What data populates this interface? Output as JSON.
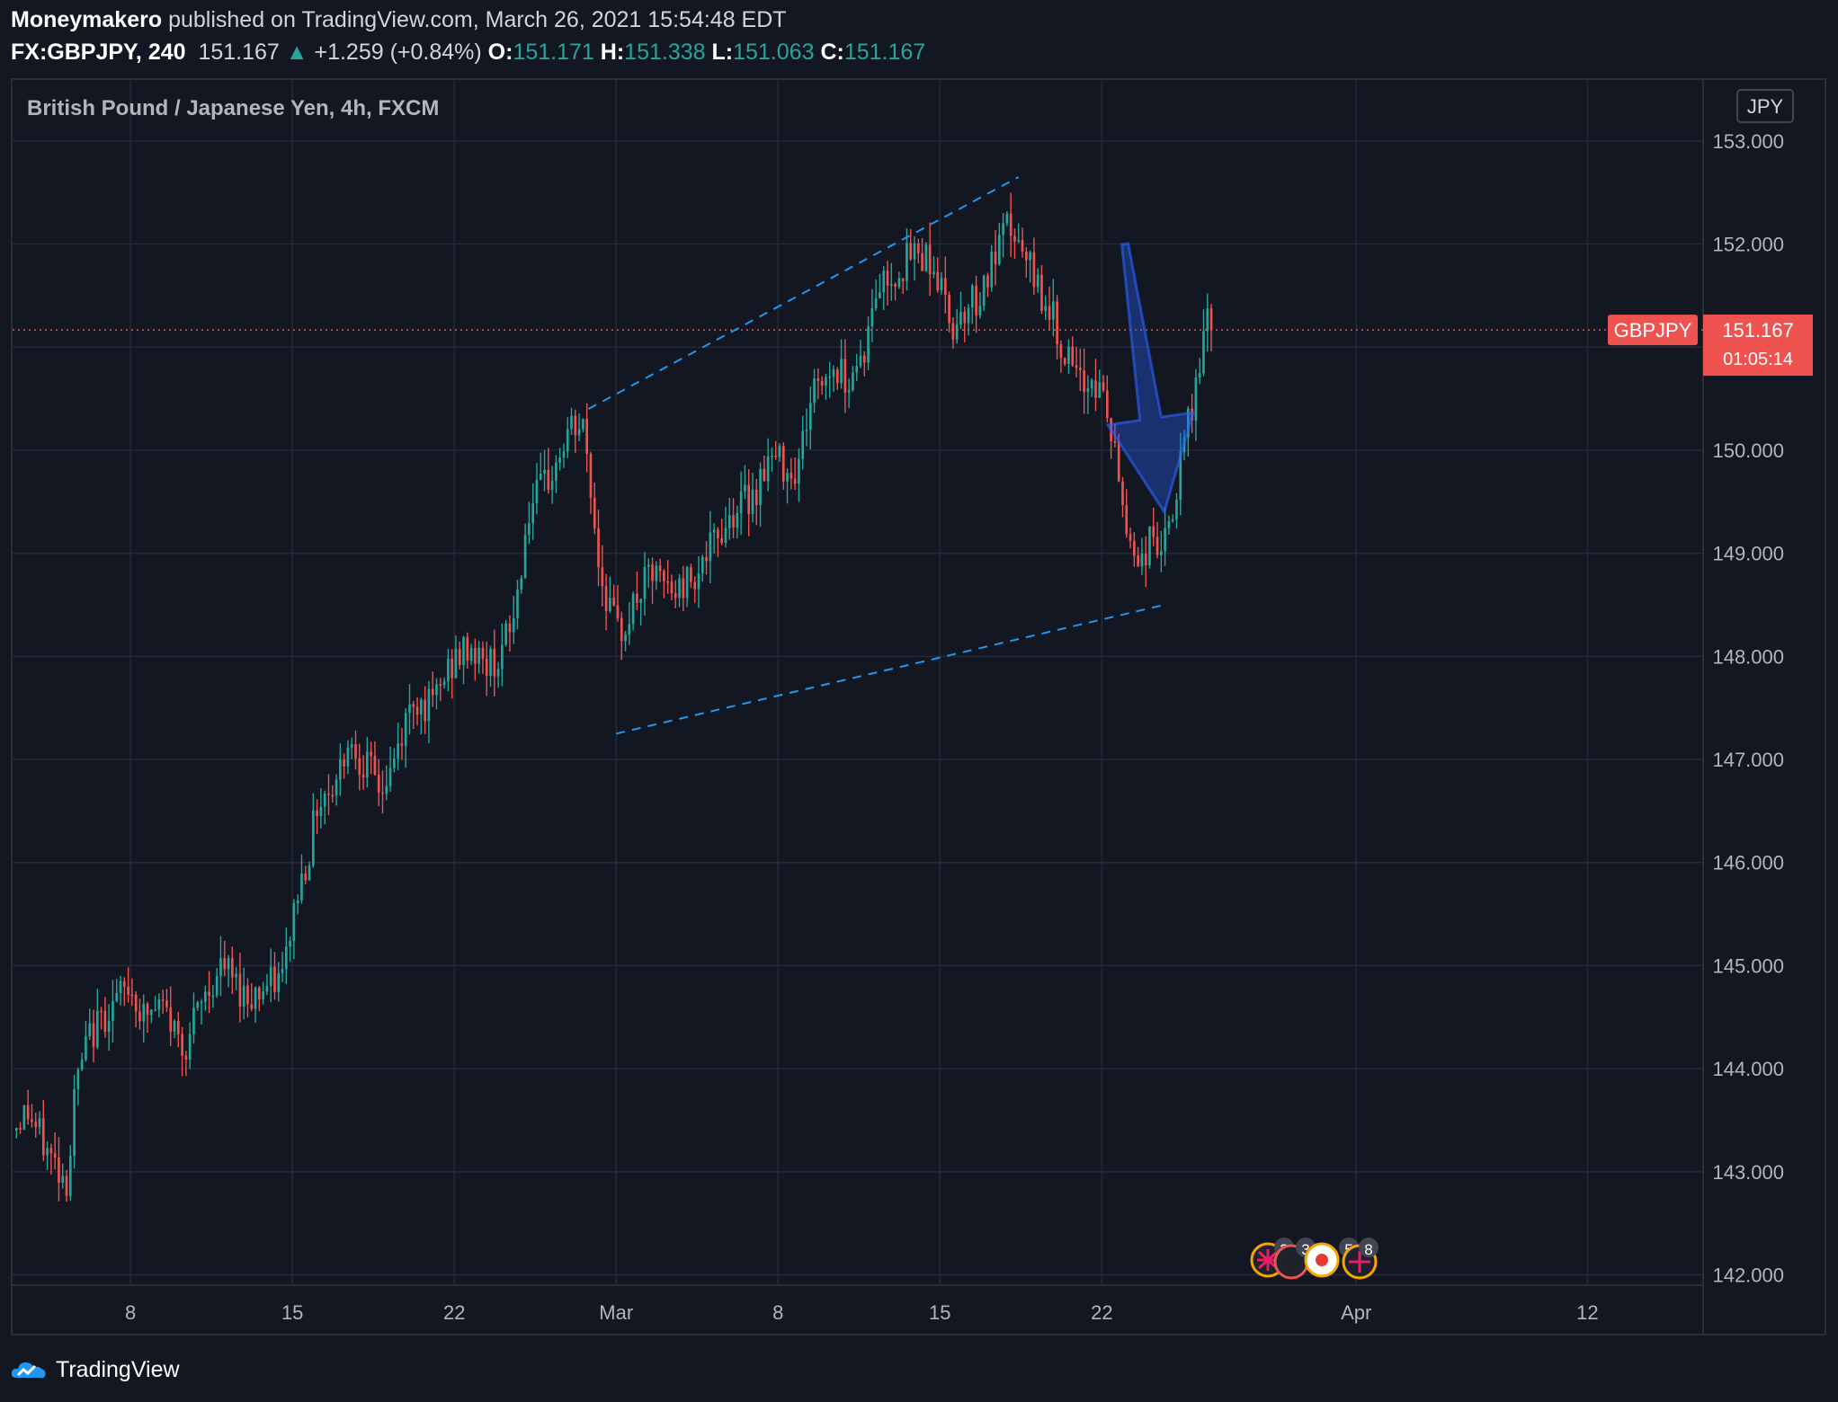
{
  "header": {
    "author": "Moneymakero",
    "published_text": "published on TradingView.com, March 26, 2021 15:54:48 EDT",
    "symbol": "FX:GBPJPY, 240",
    "last": "151.167",
    "change_arrow": "▲",
    "change": "+1.259 (+0.84%)",
    "o_label": "O:",
    "o_value": "151.171",
    "h_label": "H:",
    "h_value": "151.338",
    "l_label": "L:",
    "l_value": "151.063",
    "c_label": "C:",
    "c_value": "151.167"
  },
  "chart_title": "British Pound / Japanese Yen, 4h, FXCM",
  "currency_button": "JPY",
  "price_tag": {
    "symbol": "GBPJPY",
    "price": "151.167",
    "countdown": "01:05:14"
  },
  "events": {
    "badge1": "3",
    "badge2": "3",
    "badge3": "5",
    "badge4": "8"
  },
  "footer": {
    "brand": "TradingView"
  },
  "colors": {
    "up": "#26a69a",
    "down": "#ef5350",
    "background": "#131722",
    "grid": "#242a38",
    "trendline": "#2196f3",
    "arrow": "#2962ff"
  },
  "chart_data": {
    "type": "candlestick",
    "title": "British Pound / Japanese Yen, 4h, FXCM",
    "xlabel": "",
    "ylabel": "JPY",
    "ylim": [
      141.9,
      153.6
    ],
    "yticks": [
      "142.000",
      "143.000",
      "144.000",
      "145.000",
      "146.000",
      "147.000",
      "148.000",
      "149.000",
      "150.000",
      "151.000",
      "152.000",
      "153.000"
    ],
    "xticks": [
      "8",
      "15",
      "22",
      "Mar",
      "8",
      "15",
      "22",
      "Apr",
      "12"
    ],
    "xtick_days": [
      7,
      14,
      21,
      28,
      35,
      42,
      49,
      60,
      70
    ],
    "x_range_days": [
      1.9,
      75.0
    ],
    "last_price": 151.167,
    "anchors": [
      [
        1.9,
        143.4
      ],
      [
        2.5,
        143.6
      ],
      [
        3.4,
        143.2
      ],
      [
        4.3,
        142.9
      ],
      [
        4.6,
        143.8
      ],
      [
        5.2,
        144.3
      ],
      [
        6.1,
        144.6
      ],
      [
        7.0,
        144.8
      ],
      [
        7.5,
        144.5
      ],
      [
        8.4,
        144.6
      ],
      [
        9.3,
        144.2
      ],
      [
        10.2,
        144.7
      ],
      [
        11.0,
        145.0
      ],
      [
        12.0,
        144.7
      ],
      [
        13.0,
        144.8
      ],
      [
        13.6,
        144.9
      ],
      [
        14.1,
        145.6
      ],
      [
        14.7,
        146.1
      ],
      [
        15.1,
        146.6
      ],
      [
        15.9,
        146.8
      ],
      [
        16.4,
        147.2
      ],
      [
        17.0,
        147.0
      ],
      [
        17.9,
        146.7
      ],
      [
        18.3,
        146.9
      ],
      [
        19.2,
        147.6
      ],
      [
        20.0,
        147.5
      ],
      [
        20.8,
        147.9
      ],
      [
        21.7,
        148.1
      ],
      [
        22.3,
        147.9
      ],
      [
        23.0,
        148.0
      ],
      [
        23.6,
        148.4
      ],
      [
        24.2,
        149.4
      ],
      [
        25.3,
        149.8
      ],
      [
        26.0,
        150.2
      ],
      [
        26.6,
        150.2
      ],
      [
        27.3,
        148.8
      ],
      [
        28.1,
        148.2
      ],
      [
        29.0,
        148.6
      ],
      [
        29.5,
        148.8
      ],
      [
        30.5,
        148.6
      ],
      [
        31.3,
        148.8
      ],
      [
        32.0,
        149.0
      ],
      [
        33.0,
        149.4
      ],
      [
        34.0,
        149.6
      ],
      [
        34.5,
        149.9
      ],
      [
        35.0,
        149.9
      ],
      [
        35.8,
        149.8
      ],
      [
        36.5,
        150.6
      ],
      [
        37.4,
        150.8
      ],
      [
        38.0,
        150.7
      ],
      [
        38.8,
        151.0
      ],
      [
        39.3,
        151.6
      ],
      [
        40.0,
        151.7
      ],
      [
        40.8,
        151.9
      ],
      [
        41.5,
        151.9
      ],
      [
        42.0,
        151.6
      ],
      [
        42.5,
        151.2
      ],
      [
        43.1,
        151.4
      ],
      [
        43.7,
        151.5
      ],
      [
        44.3,
        151.8
      ],
      [
        45.0,
        152.2
      ],
      [
        45.5,
        151.9
      ],
      [
        46.0,
        151.7
      ],
      [
        46.7,
        151.4
      ],
      [
        47.3,
        151.0
      ],
      [
        48.0,
        150.6
      ],
      [
        48.6,
        150.7
      ],
      [
        49.1,
        150.5
      ],
      [
        49.6,
        149.9
      ],
      [
        50.1,
        149.2
      ],
      [
        50.7,
        148.9
      ],
      [
        51.2,
        149.2
      ],
      [
        51.6,
        149.0
      ],
      [
        52.1,
        149.4
      ],
      [
        52.6,
        150.1
      ],
      [
        53.0,
        150.5
      ],
      [
        53.3,
        151.0
      ],
      [
        53.6,
        151.3
      ],
      [
        53.8,
        151.167
      ]
    ],
    "trendlines": [
      {
        "style": "dashed",
        "from": [
          26.8,
          150.4
        ],
        "to": [
          45.4,
          152.65
        ]
      },
      {
        "style": "dashed",
        "from": [
          28.0,
          147.25
        ],
        "to": [
          51.7,
          148.5
        ]
      }
    ],
    "arrow_annotation": {
      "from": [
        50.0,
        152.0
      ],
      "to": [
        51.7,
        149.4
      ],
      "direction": "down"
    }
  }
}
